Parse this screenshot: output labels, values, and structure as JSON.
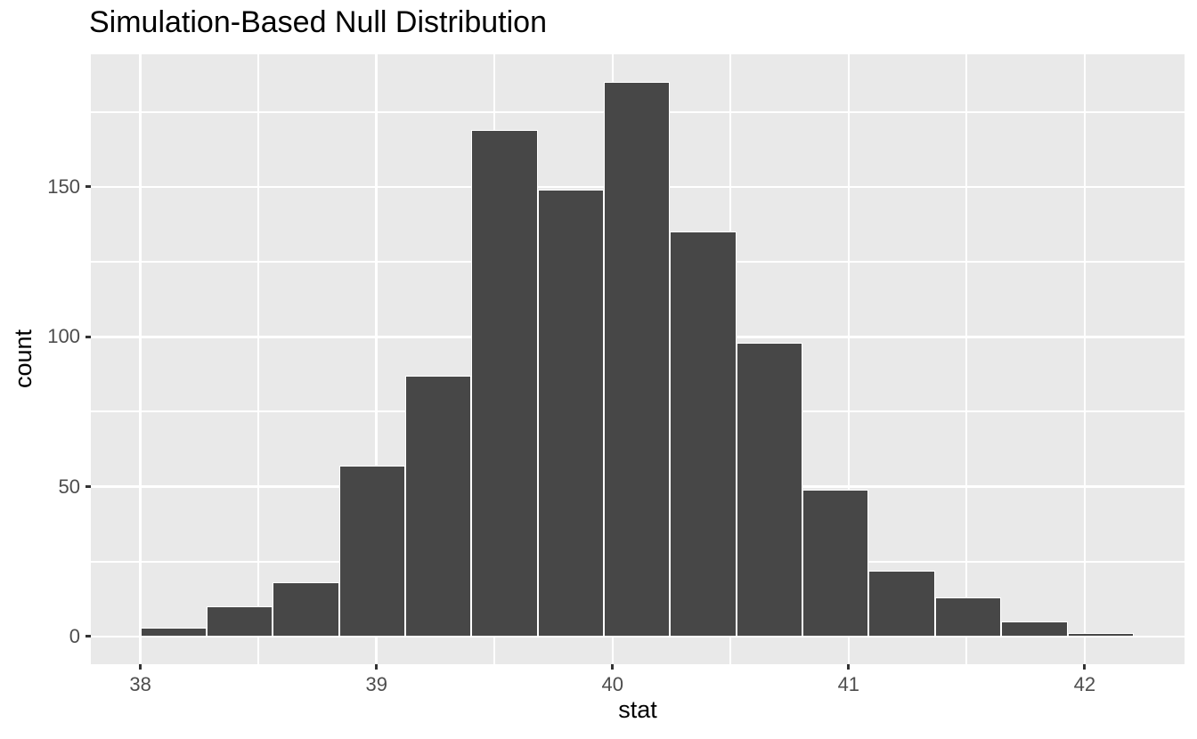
{
  "chart_data": {
    "type": "bar",
    "subtype": "histogram",
    "title": "Simulation-Based Null Distribution",
    "xlabel": "stat",
    "ylabel": "count",
    "bin_start": 38.0,
    "bin_width": 0.2805,
    "bins": 15,
    "counts": [
      3,
      10,
      18,
      57,
      87,
      169,
      149,
      185,
      135,
      98,
      49,
      22,
      13,
      5,
      1
    ],
    "x_ticks": [
      38,
      39,
      40,
      41,
      42
    ],
    "y_ticks": [
      0,
      50,
      100,
      150
    ],
    "x_minor_ticks": [
      38.5,
      39.5,
      40.5,
      41.5
    ],
    "y_minor_ticks": [
      25,
      75,
      125,
      175
    ],
    "xlim": [
      37.79,
      42.423
    ],
    "ylim": [
      -9.25,
      194.25
    ],
    "grid": true,
    "legend": false,
    "colors": {
      "bar_fill": "#474747",
      "bar_stroke": "#FFFFFF",
      "panel_bg": "#E9E9E9",
      "grid_major": "#FFFFFF",
      "grid_minor": "#FFFFFF",
      "tick_label": "#4D4D4D",
      "tick_mark": "#333333",
      "title_text": "#000000",
      "page_bg": "#FFFFFF"
    }
  }
}
